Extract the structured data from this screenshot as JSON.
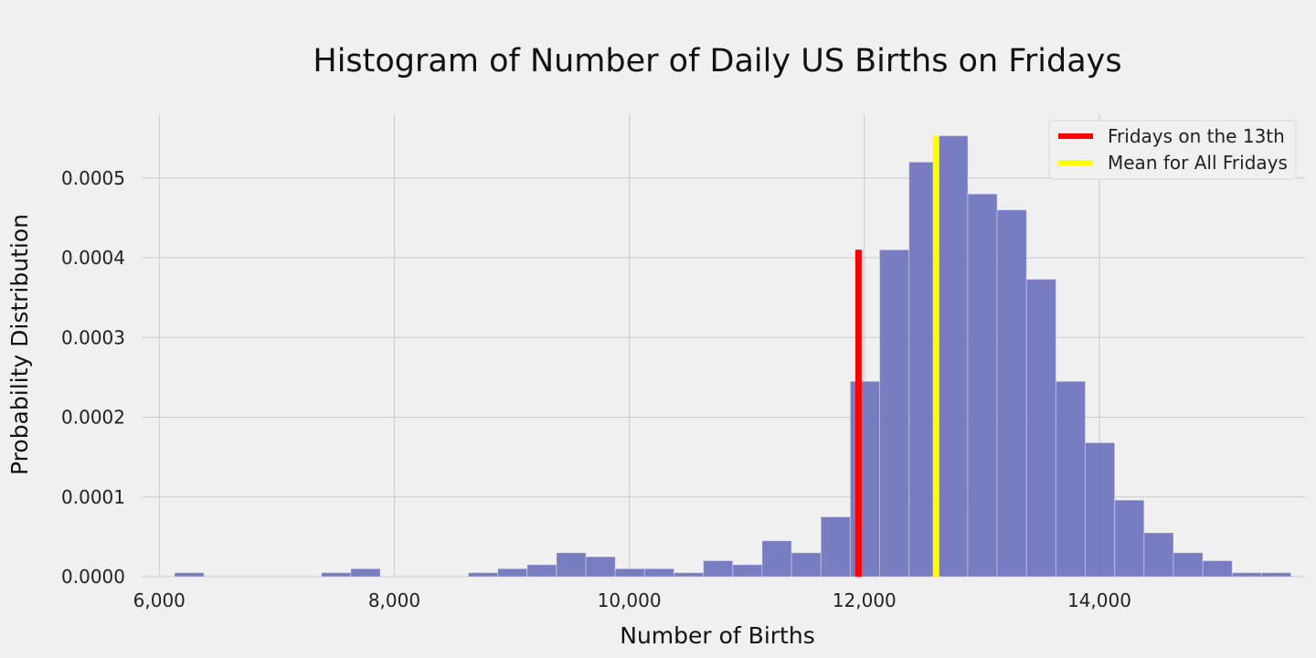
{
  "chart_data": {
    "type": "bar",
    "title": "Histogram of Number of Daily US Births on Fridays",
    "xlabel": "Number of Births",
    "ylabel": "Probability Distribution",
    "xlim": [
      5850,
      15750
    ],
    "ylim": [
      0,
      0.00058
    ],
    "grid": true,
    "legend_position": "top-right",
    "bar_color": "#6a6fbb",
    "bin_edges": [
      6130,
      6380,
      6630,
      6880,
      7130,
      7380,
      7630,
      7880,
      8130,
      8380,
      8630,
      8880,
      9130,
      9380,
      9630,
      9880,
      10130,
      10380,
      10630,
      10880,
      11130,
      11380,
      11630,
      11880,
      12130,
      12380,
      12630,
      12880,
      13130,
      13380,
      13630,
      13880,
      14130,
      14380,
      14630,
      14880,
      15130,
      15380
    ],
    "values": [
      5e-06,
      0,
      0,
      0,
      0,
      5e-06,
      1e-05,
      0,
      0,
      0,
      5e-06,
      1e-05,
      1.5e-05,
      3e-05,
      2.5e-05,
      1e-05,
      1e-05,
      5e-06,
      2e-05,
      1.5e-05,
      4.5e-05,
      3e-05,
      7.5e-05,
      0.000245,
      0.00041,
      0.00052,
      0.000553,
      0.00048,
      0.00046,
      0.000373,
      0.000245,
      0.000168,
      9.6e-05,
      5.5e-05,
      3e-05,
      2e-05,
      5e-06,
      5e-06
    ],
    "x_ticks": [
      6000,
      8000,
      10000,
      12000,
      14000
    ],
    "x_tick_labels": [
      "6,000",
      "8,000",
      "10,000",
      "12,000",
      "14,000"
    ],
    "y_ticks": [
      0,
      0.0001,
      0.0002,
      0.0003,
      0.0004,
      0.0005
    ],
    "y_tick_labels": [
      "0.0000",
      "0.0001",
      "0.0002",
      "0.0003",
      "0.0004",
      "0.0005"
    ],
    "reference_lines": [
      {
        "name": "Fridays on the 13th",
        "x": 11950,
        "height": 0.00041,
        "color": "#ff0000"
      },
      {
        "name": "Mean for All Fridays",
        "x": 12610,
        "height": 0.000553,
        "color": "#ffff00"
      }
    ]
  }
}
